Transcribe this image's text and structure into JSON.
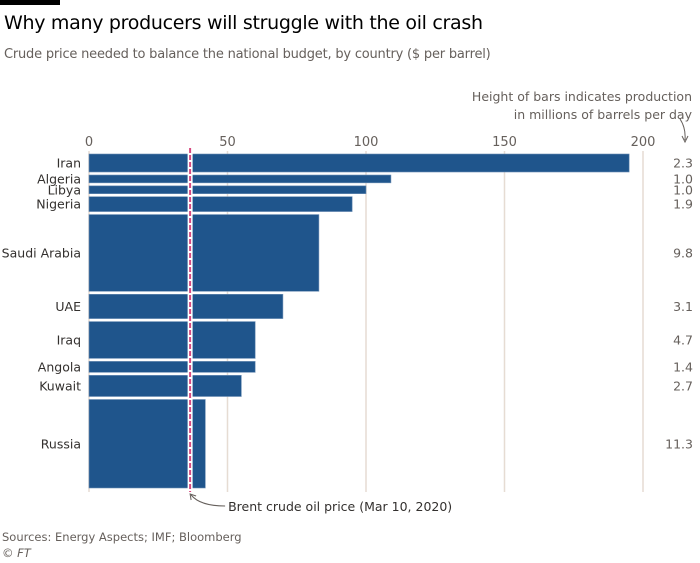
{
  "header": {
    "title": "Why many producers will struggle with the oil crash",
    "subtitle": "Crude price needed to balance the national budget, by country ($ per barrel)"
  },
  "note": {
    "line1": "Height of bars indicates production",
    "line2": "in millions of barrels per day"
  },
  "footer": {
    "sources": "Sources: Energy Aspects; IMF; Bloomberg",
    "copyright": "© FT"
  },
  "colors": {
    "bar": "#1f558c",
    "reference_line": "#d7497f",
    "grid": "#e6dcd3"
  },
  "chart_data": {
    "type": "bar",
    "orientation": "horizontal",
    "variable_height_bars": true,
    "title": "Why many producers will struggle with the oil crash",
    "subtitle": "Crude price needed to balance the national budget, by country ($ per barrel)",
    "xlabel": "$ per barrel",
    "xlim": [
      0,
      200
    ],
    "xticks": [
      0,
      50,
      100,
      150,
      200
    ],
    "grid": true,
    "categories": [
      "Iran",
      "Algeria",
      "Libya",
      "Nigeria",
      "Saudi Arabia",
      "UAE",
      "Iraq",
      "Angola",
      "Kuwait",
      "Russia"
    ],
    "values": [
      195,
      109,
      100,
      95,
      83,
      70,
      60,
      60,
      55,
      42
    ],
    "production_mbpd": [
      2.3,
      1.0,
      1.0,
      1.9,
      9.8,
      3.1,
      4.7,
      1.4,
      2.7,
      11.3
    ],
    "production_labels": [
      "2.3",
      "1.0",
      "1.0",
      "1.9",
      "9.8",
      "3.1",
      "4.7",
      "1.4",
      "2.7",
      "11.3"
    ],
    "reference_line": {
      "value": 36.5,
      "label": "Brent crude oil price (Mar 10, 2020)"
    },
    "legend_note": "Height of bars indicates production in millions of barrels per day"
  }
}
